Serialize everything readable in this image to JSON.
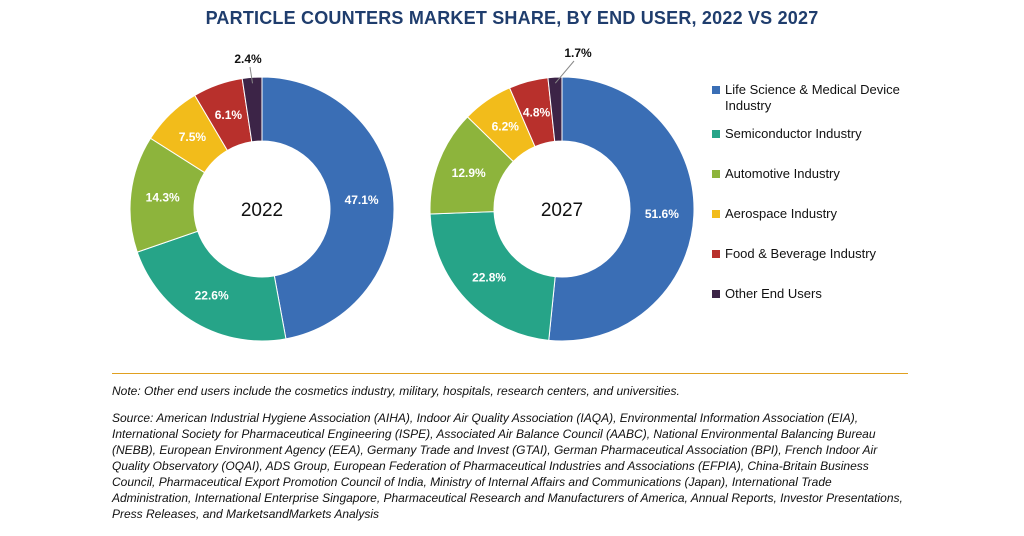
{
  "title": "PARTICLE COUNTERS MARKET SHARE, BY END USER, 2022 VS 2027",
  "chart_data": [
    {
      "type": "pie",
      "subtype": "donut",
      "center_label": "2022",
      "categories": [
        "Life Science & Medical Device Industry",
        "Semiconductor Industry",
        "Automotive Industry",
        "Aerospace Industry",
        "Food & Beverage Industry",
        "Other End Users"
      ],
      "values": [
        47.1,
        22.6,
        14.3,
        7.5,
        6.1,
        2.4
      ],
      "labels": [
        "47.1%",
        "22.6%",
        "14.3%",
        "7.5%",
        "6.1%",
        "2.4%"
      ]
    },
    {
      "type": "pie",
      "subtype": "donut",
      "center_label": "2027",
      "categories": [
        "Life Science & Medical Device Industry",
        "Semiconductor Industry",
        "Automotive Industry",
        "Aerospace Industry",
        "Food & Beverage Industry",
        "Other End Users"
      ],
      "values": [
        51.6,
        22.8,
        12.9,
        6.2,
        4.8,
        1.7
      ],
      "labels": [
        "51.6%",
        "22.8%",
        "12.9%",
        "6.2%",
        "4.8%",
        "1.7%"
      ]
    }
  ],
  "legend": {
    "placement": "right",
    "items": [
      {
        "label": "Life Science & Medical Device Industry",
        "color": "#3a6eb5"
      },
      {
        "label": "Semiconductor Industry",
        "color": "#26a488"
      },
      {
        "label": "Automotive Industry",
        "color": "#8db43c"
      },
      {
        "label": "Aerospace Industry",
        "color": "#f2bc1b"
      },
      {
        "label": "Food & Beverage Industry",
        "color": "#b8302c"
      },
      {
        "label": "Other End Users",
        "color": "#3c2447"
      }
    ]
  },
  "note": "Note: Other end users include the cosmetics industry, military, hospitals, research centers, and universities.",
  "source": "Source: American Industrial Hygiene Association (AIHA), Indoor Air Quality Association (IAQA), Environmental Information Association (EIA), International Society for Pharmaceutical Engineering (ISPE), Associated Air Balance Council (AABC), National Environmental Balancing Bureau (NEBB), European Environment Agency (EEA), Germany Trade and Invest (GTAI), German Pharmaceutical Association (BPI), French Indoor Air Quality Observatory (OQAI), ADS Group, European Federation of Pharmaceutical Industries and Associations (EFPIA), China-Britain Business Council, Pharmaceutical Export Promotion Council of India, Ministry of Internal Affairs and Communications (Japan), International Trade Administration, International Enterprise Singapore, Pharmaceutical Research and Manufacturers of America, Annual Reports, Investor Presentations, Press Releases, and MarketsandMarkets Analysis"
}
